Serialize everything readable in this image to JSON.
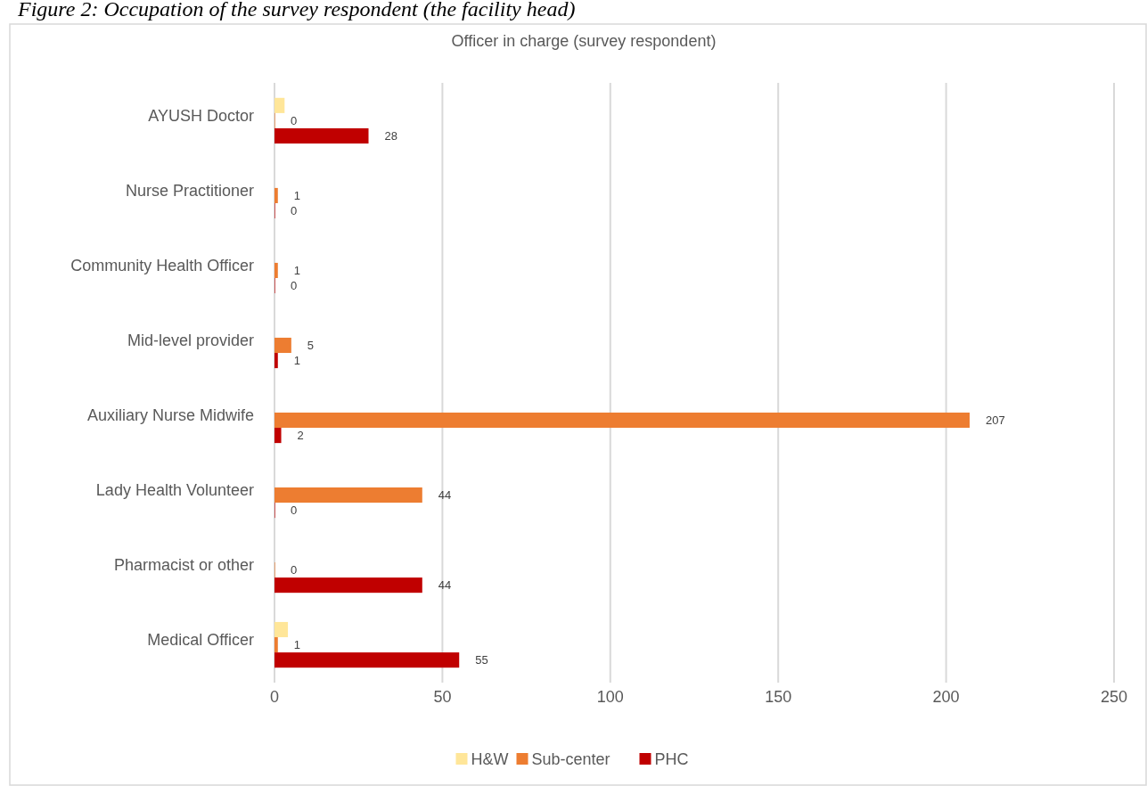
{
  "chart_data": {
    "type": "bar",
    "orientation": "horizontal",
    "title": "Figure 2: Occupation of the survey respondent (the facility head)",
    "subtitle": "Officer in charge (survey respondent)",
    "categories": [
      "AYUSH Doctor",
      "Nurse Practitioner",
      "Community Health Officer",
      "Mid-level provider",
      "Auxiliary Nurse Midwife",
      "Lady Health Volunteer",
      "Pharmacist or other",
      "Medical Officer"
    ],
    "series": [
      {
        "name": "H&W",
        "color": "#ffe699",
        "values": [
          3,
          null,
          null,
          null,
          null,
          null,
          null,
          4
        ]
      },
      {
        "name": "Sub-center",
        "color": "#ed7d31",
        "values": [
          0,
          1,
          1,
          5,
          207,
          44,
          0,
          1
        ],
        "value_labels": [
          "0",
          "1",
          "1",
          "5",
          "207",
          "44",
          "0",
          "1"
        ]
      },
      {
        "name": "PHC",
        "color": "#c00000",
        "values": [
          28,
          0,
          0,
          1,
          2,
          0,
          44,
          55
        ],
        "value_labels": [
          "28",
          "0",
          "0",
          "1",
          "2",
          "0",
          "44",
          "55"
        ]
      }
    ],
    "xlim": [
      0,
      250
    ],
    "xticks": [
      0,
      50,
      100,
      150,
      200,
      250
    ],
    "grid": "x",
    "legend": "bottom"
  }
}
